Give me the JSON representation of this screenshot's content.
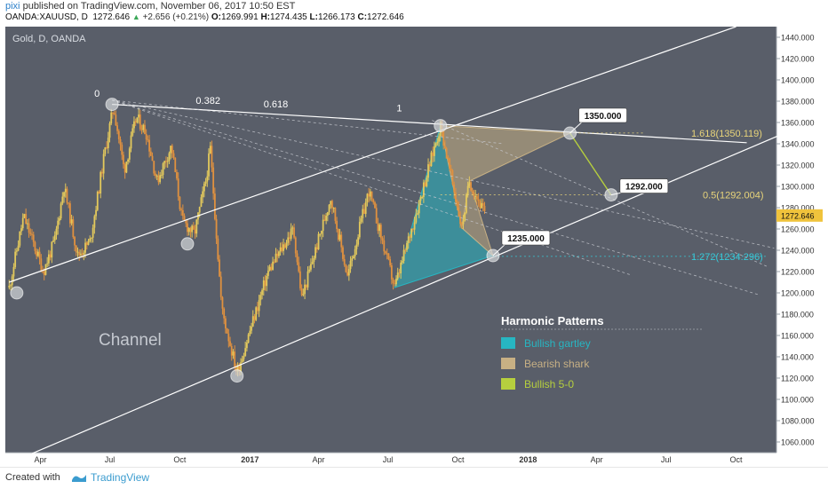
{
  "header": {
    "user": "pixi",
    "published": "published on TradingView.com, November 06, 2017 10:50 EST",
    "symbol": "OANDA:XAUUSD, D",
    "last": "1272.646",
    "up_arrow": "▲",
    "change": "+2.656 (+0.21%)",
    "o_label": "O:",
    "o_value": "1269.991",
    "h_label": "H:",
    "h_value": "1274.435",
    "l_label": "L:",
    "l_value": "1266.173",
    "c_label": "C:",
    "c_value": "1272.646"
  },
  "footer": {
    "created_with": "Created with",
    "brand": "TradingView"
  },
  "colors": {
    "background": "#595e69",
    "up_candle": "#e3c95c",
    "down_candle": "#e0913f",
    "channel_line": "#ffffff",
    "gartley": "#27b6c2",
    "shark": "#c7b084",
    "five_zero": "#b6cf3e",
    "fib_label": "#e8d47a",
    "cyan_label": "#37c9d8"
  },
  "chart_data": {
    "type": "candlestick",
    "instrument_label": "Gold, D, OANDA",
    "ylim": [
      1050,
      1450
    ],
    "y_ticks": [
      "1440.000",
      "1420.000",
      "1400.000",
      "1380.000",
      "1360.000",
      "1340.000",
      "1320.000",
      "1300.000",
      "1280.000",
      "1260.000",
      "1240.000",
      "1220.000",
      "1200.000",
      "1180.000",
      "1160.000",
      "1140.000",
      "1120.000",
      "1100.000",
      "1080.000",
      "1060.000"
    ],
    "last_price_label": "1272.646",
    "x_ticks": [
      {
        "label": "Apr",
        "date": "2016-04-01",
        "bold": false
      },
      {
        "label": "Jul",
        "date": "2016-07-01",
        "bold": false
      },
      {
        "label": "Oct",
        "date": "2016-10-01",
        "bold": false
      },
      {
        "label": "2017",
        "date": "2017-01-01",
        "bold": true
      },
      {
        "label": "Apr",
        "date": "2017-04-01",
        "bold": false
      },
      {
        "label": "Jul",
        "date": "2017-07-01",
        "bold": false
      },
      {
        "label": "Oct",
        "date": "2017-10-01",
        "bold": false
      },
      {
        "label": "2018",
        "date": "2018-01-01",
        "bold": true
      },
      {
        "label": "Apr",
        "date": "2018-04-01",
        "bold": false
      },
      {
        "label": "Jul",
        "date": "2018-07-01",
        "bold": false
      },
      {
        "label": "Oct",
        "date": "2018-10-01",
        "bold": false
      }
    ],
    "price_path": [
      [
        "2016-02-20",
        1205
      ],
      [
        "2016-03-10",
        1272
      ],
      [
        "2016-04-05",
        1220
      ],
      [
        "2016-04-20",
        1250
      ],
      [
        "2016-05-02",
        1300
      ],
      [
        "2016-05-20",
        1235
      ],
      [
        "2016-06-05",
        1248
      ],
      [
        "2016-06-15",
        1290
      ],
      [
        "2016-06-24",
        1330
      ],
      [
        "2016-07-06",
        1375
      ],
      [
        "2016-07-20",
        1315
      ],
      [
        "2016-08-05",
        1365
      ],
      [
        "2016-08-18",
        1350
      ],
      [
        "2016-09-01",
        1305
      ],
      [
        "2016-09-20",
        1338
      ],
      [
        "2016-10-04",
        1268
      ],
      [
        "2016-10-20",
        1255
      ],
      [
        "2016-11-04",
        1305
      ],
      [
        "2016-11-10",
        1335
      ],
      [
        "2016-11-25",
        1185
      ],
      [
        "2016-12-15",
        1125
      ],
      [
        "2017-01-25",
        1220
      ],
      [
        "2017-02-27",
        1260
      ],
      [
        "2017-03-10",
        1195
      ],
      [
        "2017-04-17",
        1290
      ],
      [
        "2017-05-09",
        1215
      ],
      [
        "2017-06-06",
        1296
      ],
      [
        "2017-07-10",
        1205
      ],
      [
        "2017-08-07",
        1275
      ],
      [
        "2017-09-08",
        1357
      ],
      [
        "2017-10-06",
        1261
      ],
      [
        "2017-10-16",
        1305
      ],
      [
        "2017-11-06",
        1272.646
      ]
    ],
    "channel": {
      "lower_line": [
        [
          "2016-02-20",
          1040
        ],
        [
          "2018-12-20",
          1355
        ]
      ],
      "upper_line": [
        [
          "2016-02-20",
          1210
        ],
        [
          "2018-10-01",
          1450
        ]
      ],
      "tangent_line": [
        [
          "2016-07-04",
          1377
        ],
        [
          "2018-10-15",
          1341
        ]
      ]
    },
    "pivot_points": [
      [
        "2016-07-04",
        1377
      ],
      [
        "2016-03-01",
        1200
      ],
      [
        "2016-10-11",
        1246
      ],
      [
        "2016-12-15",
        1122
      ],
      [
        "2017-09-08",
        1357
      ],
      [
        "2018-02-25",
        1350
      ],
      [
        "2017-11-16",
        1235
      ],
      [
        "2018-04-20",
        1292
      ]
    ],
    "fib_levels": [
      {
        "label": "0",
        "date": "2016-07-04",
        "price": 1381
      },
      {
        "label": "0.382",
        "date": "2016-10-22",
        "price": 1374
      },
      {
        "label": "0.618",
        "date": "2017-01-19",
        "price": 1371
      },
      {
        "label": "1",
        "date": "2017-08-28",
        "price": 1362
      }
    ],
    "patterns": {
      "bullish_gartley": {
        "points": [
          [
            "2017-07-10",
            1205
          ],
          [
            "2017-09-08",
            1357
          ],
          [
            "2017-10-06",
            1261
          ],
          [
            "2017-11-16",
            1235
          ]
        ]
      },
      "bearish_shark": {
        "points": [
          [
            "2017-09-08",
            1357
          ],
          [
            "2017-10-06",
            1261
          ],
          [
            "2017-10-16",
            1305
          ],
          [
            "2018-02-25",
            1350
          ],
          [
            "2017-11-16",
            1235
          ]
        ]
      },
      "bullish_5_0": {
        "points": [
          [
            "2018-02-25",
            1350
          ],
          [
            "2018-04-20",
            1292
          ]
        ]
      }
    },
    "price_targets": [
      {
        "label": "1350.000",
        "date": "2018-02-25",
        "price": 1350
      },
      {
        "label": "1292.000",
        "date": "2018-04-20",
        "price": 1292
      },
      {
        "label": "1235.000",
        "date": "2017-11-16",
        "price": 1235
      }
    ],
    "level_labels": [
      {
        "label": "1.618(1350.119)",
        "price": 1350.119,
        "color": "#e8d47a"
      },
      {
        "label": "0.5(1292.004)",
        "price": 1292.004,
        "color": "#e8d47a"
      },
      {
        "label": "1.272(1234.296)",
        "price": 1234.296,
        "color": "#37c9d8"
      }
    ],
    "annotations": {
      "channel_label": "Channel"
    },
    "legend": {
      "title": "Harmonic Patterns",
      "placement": "bottom-right",
      "items": [
        {
          "name": "Bullish gartley",
          "color": "#27b6c2"
        },
        {
          "name": "Bearish shark",
          "color": "#c7b084"
        },
        {
          "name": "Bullish 5-0",
          "color": "#b6cf3e"
        }
      ]
    }
  }
}
